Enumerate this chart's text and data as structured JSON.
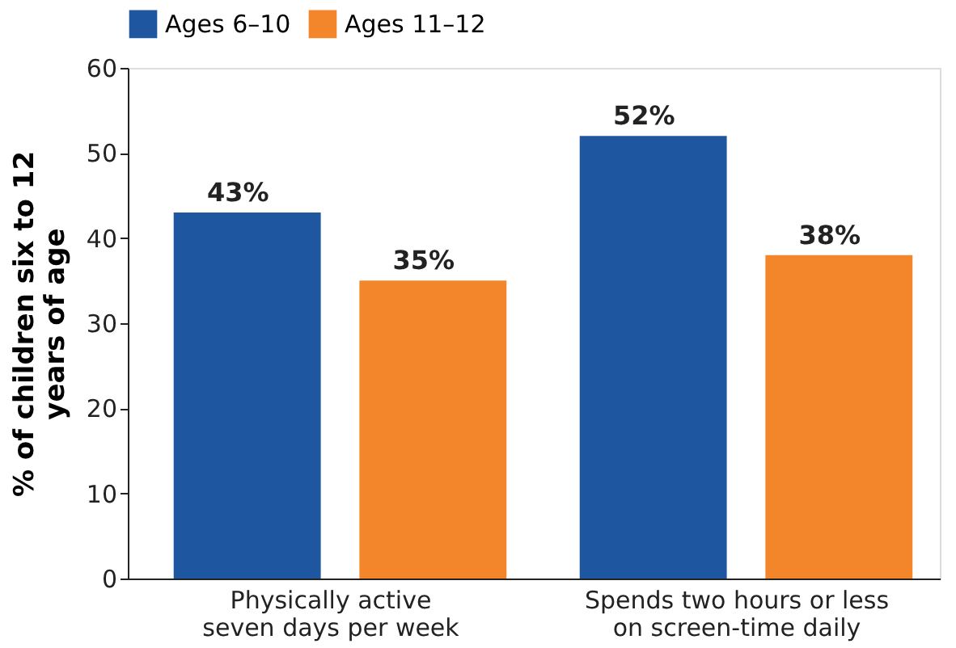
{
  "chart_data": {
    "type": "bar",
    "ylabel": "% of children six to 12\nyears of age",
    "categories": [
      "Physically active\nseven days per week",
      "Spends two hours or less\non screen-time daily"
    ],
    "series": [
      {
        "name": "Ages 6–10",
        "color": "#1f56a0",
        "values": [
          43,
          52
        ],
        "value_labels": [
          "43%",
          "52%"
        ]
      },
      {
        "name": "Ages 11–12",
        "color": "#f3862a",
        "values": [
          35,
          38
        ],
        "value_labels": [
          "35%",
          "38%"
        ]
      }
    ],
    "ylim": [
      0,
      60
    ],
    "yticks": [
      0,
      10,
      20,
      30,
      40,
      50,
      60
    ],
    "grid": false,
    "legend": "top"
  }
}
